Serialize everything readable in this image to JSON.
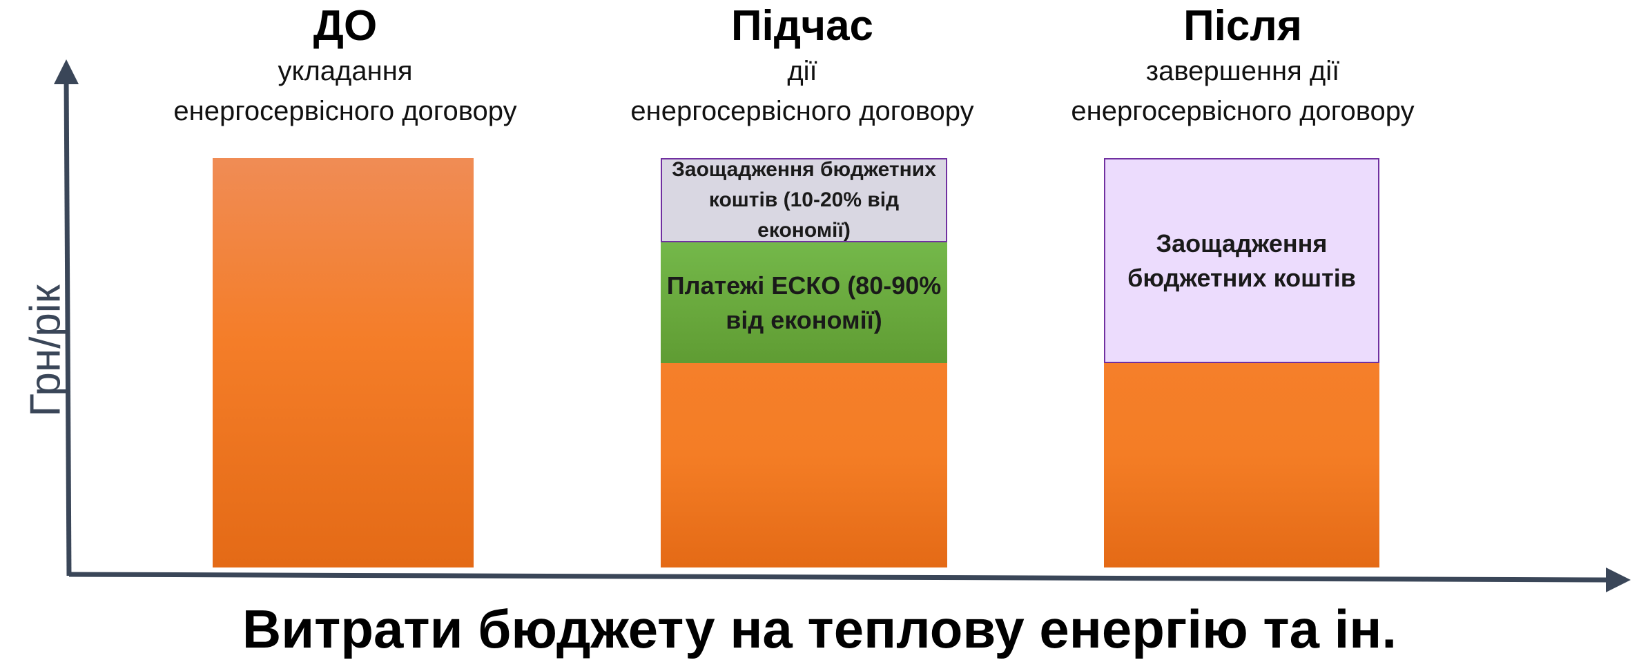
{
  "colors": {
    "axis": "#3a4658",
    "orange": "#f47d25",
    "green": "#6aaa3e",
    "gray": "#d9d7e2",
    "lilac": "#ecdcfd",
    "border": "#7030a0"
  },
  "axes": {
    "y_label": "Грн/рік",
    "x_label": "Витрати бюджету на теплову енергію та ін."
  },
  "columns": [
    {
      "title": "ДО",
      "subtitle_1": "укладання",
      "subtitle_2": "енергосервісного договору"
    },
    {
      "title": "Підчас",
      "subtitle_1": "дії",
      "subtitle_2": "енергосервісного договору",
      "segments": {
        "savings": "Заощадження бюджетних коштів (10-20% від економії)",
        "esco": "Платежі ЕСКО (80-90% від економії)"
      }
    },
    {
      "title": "Після",
      "subtitle_1": "завершення дії",
      "subtitle_2": "енергосервісного договору",
      "segments": {
        "savings": "Заощадження бюджетних коштів"
      }
    }
  ]
}
